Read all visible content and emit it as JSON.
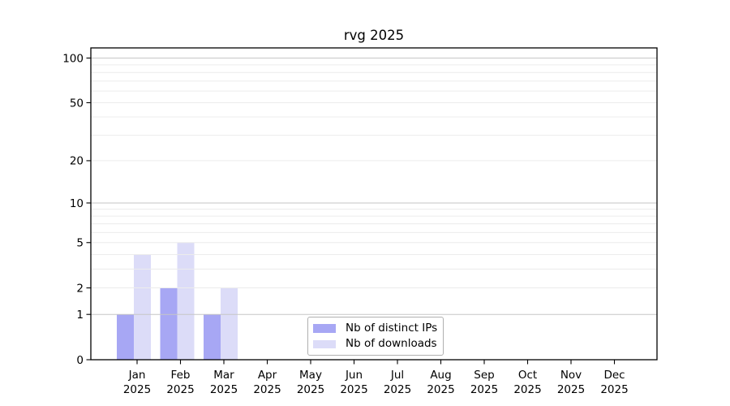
{
  "title": "rvg 2025",
  "chart_data": {
    "type": "bar",
    "title": "rvg 2025",
    "scale": "log1p",
    "grid": true,
    "categories": [
      "Jan 2025",
      "Feb 2025",
      "Mar 2025",
      "Apr 2025",
      "May 2025",
      "Jun 2025",
      "Jul 2025",
      "Aug 2025",
      "Sep 2025",
      "Oct 2025",
      "Nov 2025",
      "Dec 2025"
    ],
    "series": [
      {
        "name": "Nb of distinct IPs",
        "color": "#a7a7f4",
        "values": [
          1,
          2,
          1,
          0,
          0,
          0,
          0,
          0,
          0,
          0,
          0,
          0
        ]
      },
      {
        "name": "Nb of downloads",
        "color": "#dcdcf8",
        "values": [
          4,
          5,
          2,
          0,
          0,
          0,
          0,
          0,
          0,
          0,
          0,
          0
        ]
      }
    ],
    "ylim": [
      0,
      100
    ],
    "y_ticks": [
      0,
      1,
      2,
      5,
      10,
      20,
      50,
      100
    ],
    "grid_major_values": [
      1,
      10,
      100
    ],
    "grid_minor_values": [
      2,
      3,
      4,
      5,
      6,
      7,
      8,
      9,
      20,
      30,
      40,
      50,
      60,
      70,
      80,
      90
    ],
    "legend_position": "lower center"
  },
  "legend": {
    "items": [
      {
        "label": "Nb of distinct IPs"
      },
      {
        "label": "Nb of downloads"
      }
    ]
  },
  "colors": {
    "background": "#ffffff",
    "axis": "#000000",
    "text": "#000000",
    "grid_major": "#c6c6c6",
    "grid_minor": "#ececec",
    "legend_border": "#b0b0b0",
    "distinct_ips": "#a7a7f4",
    "downloads": "#dcdcf8"
  }
}
